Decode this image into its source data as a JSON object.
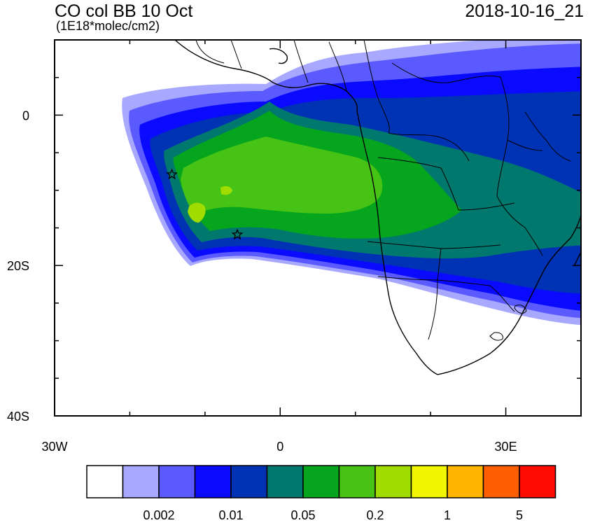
{
  "title": "CO col BB 10 Oct",
  "units": "(1E18*molec/cm2)",
  "time": "2018-10-16_21",
  "axes": {
    "x_ticks": [
      {
        "lon": -30,
        "label": "30W"
      },
      {
        "lon": 0,
        "label": "0"
      },
      {
        "lon": 30,
        "label": "30E"
      }
    ],
    "y_ticks": [
      {
        "lat": 0,
        "label": "0"
      },
      {
        "lat": -20,
        "label": "20S"
      },
      {
        "lat": -40,
        "label": "40S"
      }
    ],
    "lon_range": [
      -30,
      40
    ],
    "lat_range": [
      -40,
      10
    ]
  },
  "colorbar": {
    "colors": [
      "#ffffff",
      "#a8a8ff",
      "#5a5aff",
      "#0a0aff",
      "#0032b4",
      "#00786e",
      "#05a51e",
      "#46c314",
      "#a0dc00",
      "#f0f500",
      "#ffb400",
      "#ff5f00",
      "#ff0a00"
    ],
    "labels": [
      {
        "after_box": 2,
        "text": "0.002"
      },
      {
        "after_box": 4,
        "text": "0.01"
      },
      {
        "after_box": 6,
        "text": "0.05"
      },
      {
        "after_box": 8,
        "text": "0.2"
      },
      {
        "after_box": 10,
        "text": "1"
      },
      {
        "after_box": 12,
        "text": "5"
      }
    ]
  },
  "markers": [
    {
      "name": "star-marker-ascension",
      "lon": -14.4,
      "lat": -7.9
    },
    {
      "name": "star-marker-st-helena",
      "lon": -5.7,
      "lat": -15.9
    }
  ]
}
